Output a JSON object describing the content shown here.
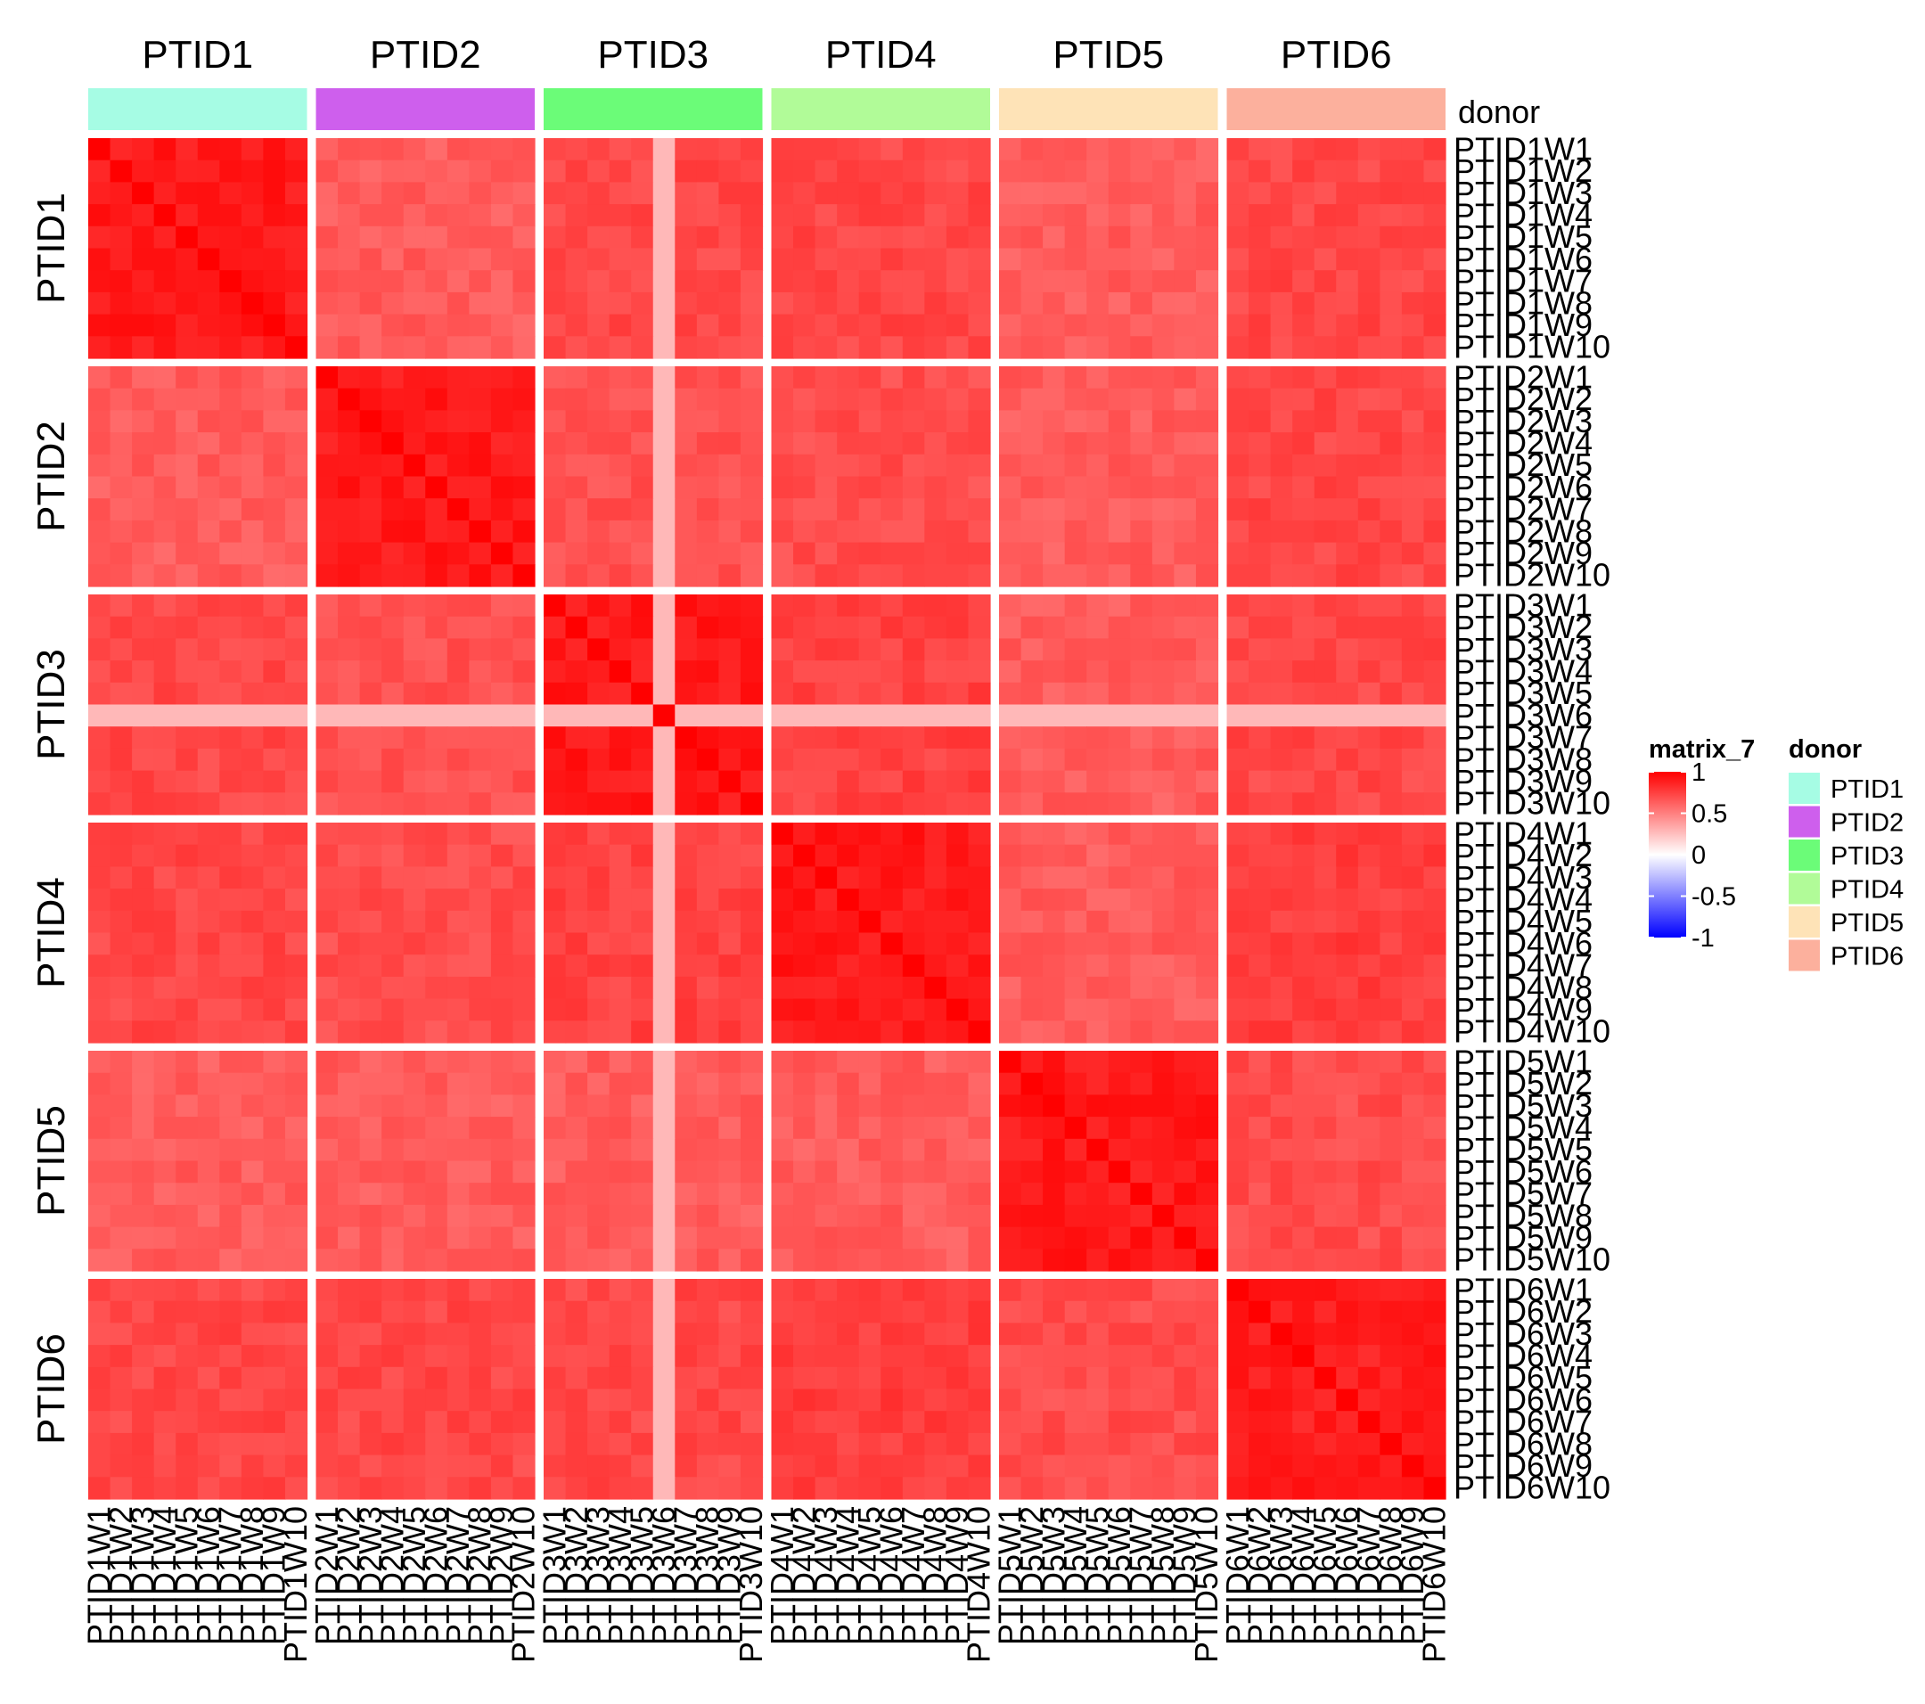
{
  "colors": {
    "low": "#0000ff",
    "mid": "#ffffff",
    "high": "#ff0000",
    "donor": {
      "PTID1": "#a6fce4",
      "PTID2": "#ce5fed",
      "PTID3": "#6bfc78",
      "PTID4": "#b1fb98",
      "PTID5": "#fee3b7",
      "PTID6": "#fcb09d"
    }
  },
  "chart_data": {
    "type": "heatmap",
    "title": "",
    "annotation_name": "donor",
    "groups": [
      "PTID1",
      "PTID2",
      "PTID3",
      "PTID4",
      "PTID5",
      "PTID6"
    ],
    "samples_per_group": 10,
    "sample_prefix": "W",
    "value_range": [
      -1,
      1
    ],
    "diagonal_value": 1,
    "within_group_correlation": [
      0.9,
      0.9,
      0.9,
      0.9,
      0.9,
      0.88
    ],
    "between_group_correlation": [
      [
        0.9,
        0.64,
        0.72,
        0.72,
        0.64,
        0.72
      ],
      [
        0.64,
        0.9,
        0.68,
        0.7,
        0.64,
        0.72
      ],
      [
        0.72,
        0.68,
        0.9,
        0.74,
        0.64,
        0.72
      ],
      [
        0.72,
        0.7,
        0.74,
        0.9,
        0.64,
        0.76
      ],
      [
        0.64,
        0.64,
        0.64,
        0.64,
        0.9,
        0.7
      ],
      [
        0.72,
        0.72,
        0.72,
        0.76,
        0.7,
        0.88
      ]
    ],
    "low_correlation_sample": "PTID3W6",
    "low_correlation_value": 0.28,
    "legend": {
      "matrix_title": "matrix_7",
      "matrix_ticks": [
        "1",
        "0.5",
        "0",
        "-0.5",
        "-1"
      ],
      "matrix_tick_values": [
        1,
        0.5,
        0,
        -0.5,
        -1
      ],
      "annotation_title": "donor",
      "annotation_entries": [
        "PTID1",
        "PTID2",
        "PTID3",
        "PTID4",
        "PTID5",
        "PTID6"
      ]
    },
    "row_labels": [
      "PTID1W1",
      "PTID1W2",
      "PTID1W3",
      "PTID1W4",
      "PTID1W5",
      "PTID1W6",
      "PTID1W7",
      "PTID1W8",
      "PTID1W9",
      "PTID1W10",
      "PTID2W1",
      "PTID2W2",
      "PTID2W3",
      "PTID2W4",
      "PTID2W5",
      "PTID2W6",
      "PTID2W7",
      "PTID2W8",
      "PTID2W9",
      "PTID2W10",
      "PTID3W1",
      "PTID3W2",
      "PTID3W3",
      "PTID3W4",
      "PTID3W5",
      "PTID3W6",
      "PTID3W7",
      "PTID3W8",
      "PTID3W9",
      "PTID3W10",
      "PTID4W1",
      "PTID4W2",
      "PTID4W3",
      "PTID4W4",
      "PTID4W5",
      "PTID4W6",
      "PTID4W7",
      "PTID4W8",
      "PTID4W9",
      "PTID4W10",
      "PTID5W1",
      "PTID5W2",
      "PTID5W3",
      "PTID5W4",
      "PTID5W5",
      "PTID5W6",
      "PTID5W7",
      "PTID5W8",
      "PTID5W9",
      "PTID5W10",
      "PTID6W1",
      "PTID6W2",
      "PTID6W3",
      "PTID6W4",
      "PTID6W5",
      "PTID6W6",
      "PTID6W7",
      "PTID6W8",
      "PTID6W9",
      "PTID6W10"
    ],
    "column_labels": [
      "PTID1W1",
      "PTID1W2",
      "PTID1W3",
      "PTID1W4",
      "PTID1W5",
      "PTID1W6",
      "PTID1W7",
      "PTID1W8",
      "PTID1W9",
      "PTID1W10",
      "PTID2W1",
      "PTID2W2",
      "PTID2W3",
      "PTID2W4",
      "PTID2W5",
      "PTID2W6",
      "PTID2W7",
      "PTID2W8",
      "PTID2W9",
      "PTID2W10",
      "PTID3W1",
      "PTID3W2",
      "PTID3W3",
      "PTID3W4",
      "PTID3W5",
      "PTID3W6",
      "PTID3W7",
      "PTID3W8",
      "PTID3W9",
      "PTID3W10",
      "PTID4W1",
      "PTID4W2",
      "PTID4W3",
      "PTID4W4",
      "PTID4W5",
      "PTID4W6",
      "PTID4W7",
      "PTID4W8",
      "PTID4W9",
      "PTID4W10",
      "PTID5W1",
      "PTID5W2",
      "PTID5W3",
      "PTID5W4",
      "PTID5W5",
      "PTID5W6",
      "PTID5W7",
      "PTID5W8",
      "PTID5W9",
      "PTID5W10",
      "PTID6W1",
      "PTID6W2",
      "PTID6W3",
      "PTID6W4",
      "PTID6W5",
      "PTID6W6",
      "PTID6W7",
      "PTID6W8",
      "PTID6W9",
      "PTID6W10"
    ]
  }
}
